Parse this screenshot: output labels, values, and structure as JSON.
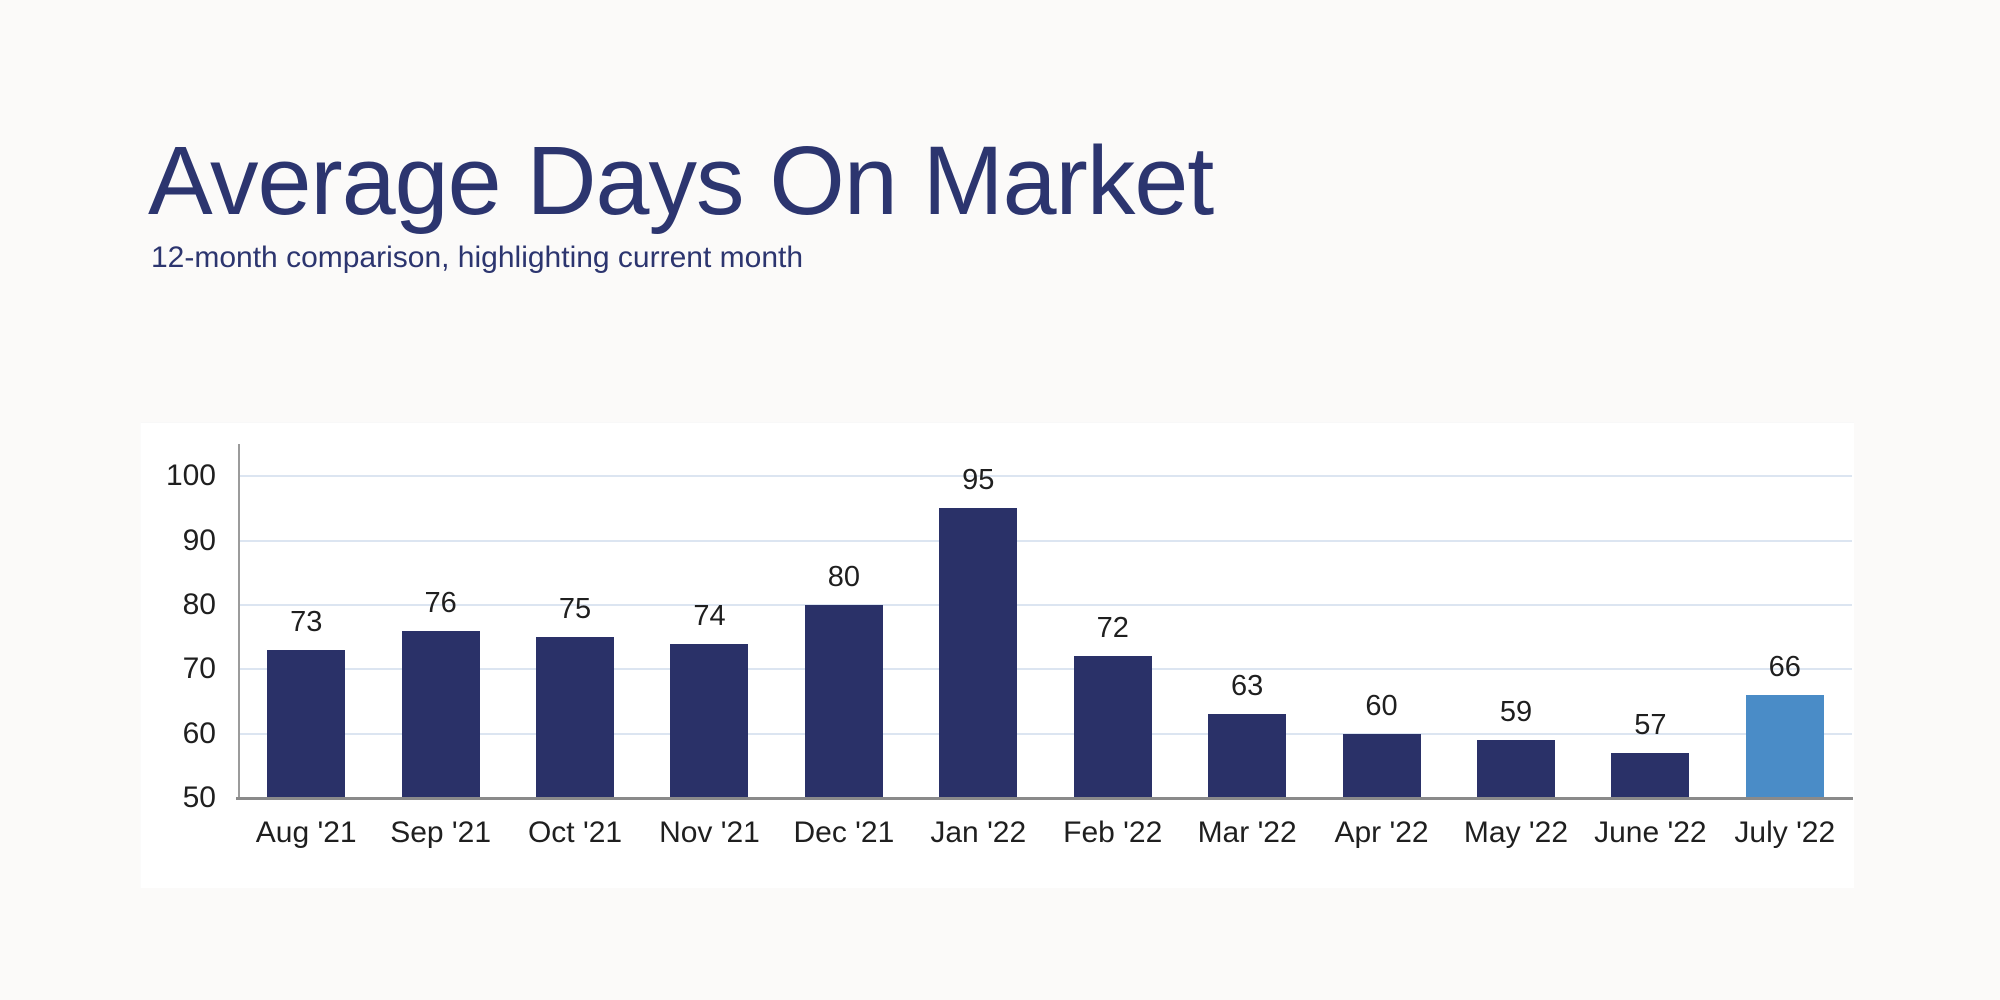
{
  "header": {
    "title": "Average Days On Market",
    "subtitle": "12-month comparison, highlighting current month"
  },
  "chart_data": {
    "type": "bar",
    "title": "Average Days On Market",
    "subtitle": "12-month comparison, highlighting current month",
    "categories": [
      "Aug '21",
      "Sep '21",
      "Oct '21",
      "Nov '21",
      "Dec '21",
      "Jan '22",
      "Feb '22",
      "Mar '22",
      "Apr '22",
      "May '22",
      "June '22",
      "July '22"
    ],
    "values": [
      73,
      76,
      75,
      74,
      80,
      95,
      72,
      63,
      60,
      59,
      57,
      66
    ],
    "highlight_index": 11,
    "highlight_label": "July '22",
    "xlabel": "",
    "ylabel": "",
    "ylim": [
      50,
      105
    ],
    "yticks": [
      50,
      60,
      70,
      80,
      90,
      100
    ],
    "grid": true,
    "legend": "none",
    "colors": {
      "bar": "#2a3168",
      "highlight_bar": "#4a8cc7",
      "gridline": "#dce5f1",
      "y_axis_line": "#9b9b9b",
      "x_axis_line": "#8a8a8a",
      "tick_label": "#1f1f1f",
      "value_label": "#1f1f1f",
      "title": "#2c356f"
    }
  }
}
